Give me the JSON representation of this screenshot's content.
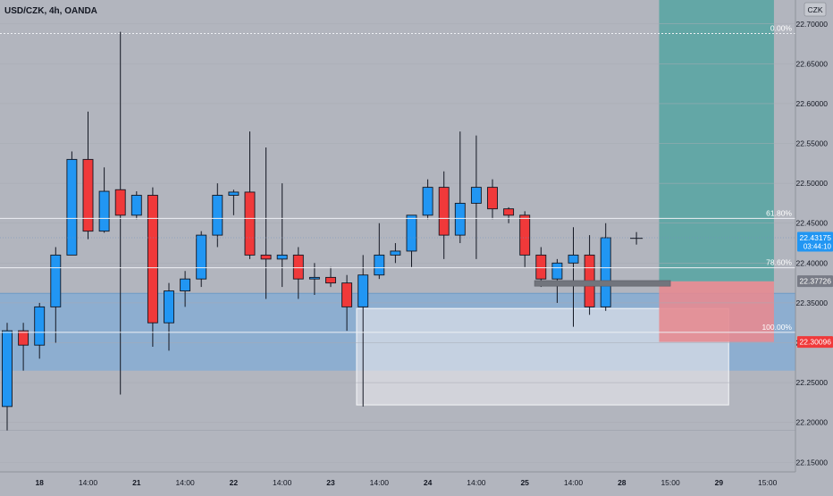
{
  "header": {
    "symbol_title": "USD/CZK, 4h, OANDA",
    "currency_badge": "CZK"
  },
  "colors": {
    "background": "#b2b5be",
    "up": "#2196f3",
    "down": "#f0393a",
    "support_zone": "#86add3",
    "target_zone": "#5fa7a4",
    "stop_zone": "#e68b91",
    "rect_zone": "#e3e4ea",
    "fib_line": "#eef0f4",
    "price_tag": "#2196f3",
    "sell_tag": "#f0393a",
    "gray_tag": "#787b86"
  },
  "price_tags": [
    {
      "name": "current-price-tag",
      "text": "22.43175",
      "sub": "03:44:10",
      "y": 22.43175,
      "color": "#2196f3"
    },
    {
      "name": "entry-price-tag",
      "text": "22.37726",
      "y": 22.37726,
      "color": "#787b86"
    },
    {
      "name": "stop-price-tag",
      "text": "22.30096",
      "y": 22.30096,
      "color": "#f0393a"
    }
  ],
  "fib_levels": [
    {
      "label": "0.00%",
      "y": 22.688
    },
    {
      "label": "61.80%",
      "y": 22.456
    },
    {
      "label": "78.60%",
      "y": 22.394
    },
    {
      "label": "100.00%",
      "y": 22.313
    }
  ],
  "drawings": {
    "support_zone": {
      "y_top": 22.362,
      "y_bottom": 22.265
    },
    "rectangle": {
      "x_start": 21.6,
      "x_end": 44.6,
      "y_top": 22.343,
      "y_bottom": 22.222
    },
    "target_zone": {
      "x_start": 40.3,
      "x_end": 47.4,
      "y_top": 22.73,
      "y_bottom": 22.377
    },
    "stop_zone": {
      "x_start": 40.3,
      "x_end": 47.4,
      "y_top": 22.377,
      "y_bottom": 22.301
    },
    "entry_marker": {
      "x_start": 32.6,
      "x_end": 41.0,
      "y_top": 22.378,
      "y_bottom": 22.371
    },
    "crosshair": {
      "x": 38.9,
      "y": 22.431
    }
  },
  "chart_data": {
    "type": "candlestick",
    "title": "USD/CZK, 4h, OANDA",
    "ylim": [
      22.138,
      22.73
    ],
    "y_ticks": [
      22.7,
      22.65,
      22.6,
      22.55,
      22.5,
      22.45,
      22.4,
      22.35,
      22.3,
      22.25,
      22.2,
      22.15
    ],
    "x_ticks": [
      {
        "label": "18",
        "x": 2
      },
      {
        "label": "14:00",
        "x": 5
      },
      {
        "label": "21",
        "x": 8
      },
      {
        "label": "14:00",
        "x": 11
      },
      {
        "label": "22",
        "x": 14
      },
      {
        "label": "14:00",
        "x": 17
      },
      {
        "label": "23",
        "x": 20
      },
      {
        "label": "14:00",
        "x": 23
      },
      {
        "label": "24",
        "x": 26
      },
      {
        "label": "14:00",
        "x": 29
      },
      {
        "label": "25",
        "x": 32
      },
      {
        "label": "14:00",
        "x": 35
      },
      {
        "label": "28",
        "x": 38
      },
      {
        "label": "15:00",
        "x": 41
      },
      {
        "label": "29",
        "x": 44
      },
      {
        "label": "15:00",
        "x": 47
      }
    ],
    "candles": [
      {
        "x": 0,
        "o": 22.22,
        "h": 22.325,
        "l": 22.19,
        "c": 22.315
      },
      {
        "x": 1,
        "o": 22.315,
        "h": 22.325,
        "l": 22.265,
        "c": 22.297
      },
      {
        "x": 2,
        "o": 22.297,
        "h": 22.35,
        "l": 22.28,
        "c": 22.345
      },
      {
        "x": 3,
        "o": 22.345,
        "h": 22.42,
        "l": 22.3,
        "c": 22.41
      },
      {
        "x": 4,
        "o": 22.41,
        "h": 22.54,
        "l": 22.41,
        "c": 22.53
      },
      {
        "x": 5,
        "o": 22.53,
        "h": 22.59,
        "l": 22.43,
        "c": 22.44
      },
      {
        "x": 6,
        "o": 22.44,
        "h": 22.52,
        "l": 22.438,
        "c": 22.49
      },
      {
        "x": 7,
        "o": 22.492,
        "h": 22.69,
        "l": 22.235,
        "c": 22.46
      },
      {
        "x": 8,
        "o": 22.46,
        "h": 22.49,
        "l": 22.455,
        "c": 22.485
      },
      {
        "x": 9,
        "o": 22.485,
        "h": 22.495,
        "l": 22.295,
        "c": 22.325
      },
      {
        "x": 10,
        "o": 22.325,
        "h": 22.375,
        "l": 22.29,
        "c": 22.365
      },
      {
        "x": 11,
        "o": 22.365,
        "h": 22.39,
        "l": 22.345,
        "c": 22.38
      },
      {
        "x": 12,
        "o": 22.38,
        "h": 22.44,
        "l": 22.37,
        "c": 22.435
      },
      {
        "x": 13,
        "o": 22.435,
        "h": 22.5,
        "l": 22.42,
        "c": 22.485
      },
      {
        "x": 14,
        "o": 22.485,
        "h": 22.492,
        "l": 22.46,
        "c": 22.489
      },
      {
        "x": 15,
        "o": 22.489,
        "h": 22.565,
        "l": 22.405,
        "c": 22.41
      },
      {
        "x": 16,
        "o": 22.41,
        "h": 22.545,
        "l": 22.355,
        "c": 22.405
      },
      {
        "x": 17,
        "o": 22.405,
        "h": 22.5,
        "l": 22.37,
        "c": 22.41
      },
      {
        "x": 18,
        "o": 22.41,
        "h": 22.42,
        "l": 22.355,
        "c": 22.38
      },
      {
        "x": 19,
        "o": 22.38,
        "h": 22.4,
        "l": 22.36,
        "c": 22.382
      },
      {
        "x": 20,
        "o": 22.382,
        "h": 22.395,
        "l": 22.37,
        "c": 22.375
      },
      {
        "x": 21,
        "o": 22.375,
        "h": 22.385,
        "l": 22.315,
        "c": 22.345
      },
      {
        "x": 22,
        "o": 22.345,
        "h": 22.41,
        "l": 22.22,
        "c": 22.385
      },
      {
        "x": 23,
        "o": 22.385,
        "h": 22.45,
        "l": 22.38,
        "c": 22.41
      },
      {
        "x": 24,
        "o": 22.41,
        "h": 22.425,
        "l": 22.4,
        "c": 22.415
      },
      {
        "x": 25,
        "o": 22.415,
        "h": 22.46,
        "l": 22.395,
        "c": 22.46
      },
      {
        "x": 26,
        "o": 22.46,
        "h": 22.505,
        "l": 22.455,
        "c": 22.495
      },
      {
        "x": 27,
        "o": 22.495,
        "h": 22.515,
        "l": 22.405,
        "c": 22.435
      },
      {
        "x": 28,
        "o": 22.435,
        "h": 22.565,
        "l": 22.425,
        "c": 22.475
      },
      {
        "x": 29,
        "o": 22.475,
        "h": 22.56,
        "l": 22.405,
        "c": 22.495
      },
      {
        "x": 30,
        "o": 22.495,
        "h": 22.505,
        "l": 22.455,
        "c": 22.468
      },
      {
        "x": 31,
        "o": 22.468,
        "h": 22.47,
        "l": 22.45,
        "c": 22.46
      },
      {
        "x": 32,
        "o": 22.46,
        "h": 22.465,
        "l": 22.395,
        "c": 22.41
      },
      {
        "x": 33,
        "o": 22.41,
        "h": 22.42,
        "l": 22.37,
        "c": 22.38
      },
      {
        "x": 34,
        "o": 22.38,
        "h": 22.405,
        "l": 22.35,
        "c": 22.4
      },
      {
        "x": 35,
        "o": 22.4,
        "h": 22.445,
        "l": 22.32,
        "c": 22.41
      },
      {
        "x": 36,
        "o": 22.41,
        "h": 22.435,
        "l": 22.335,
        "c": 22.345
      },
      {
        "x": 37,
        "o": 22.345,
        "h": 22.45,
        "l": 22.34,
        "c": 22.43175
      }
    ]
  }
}
